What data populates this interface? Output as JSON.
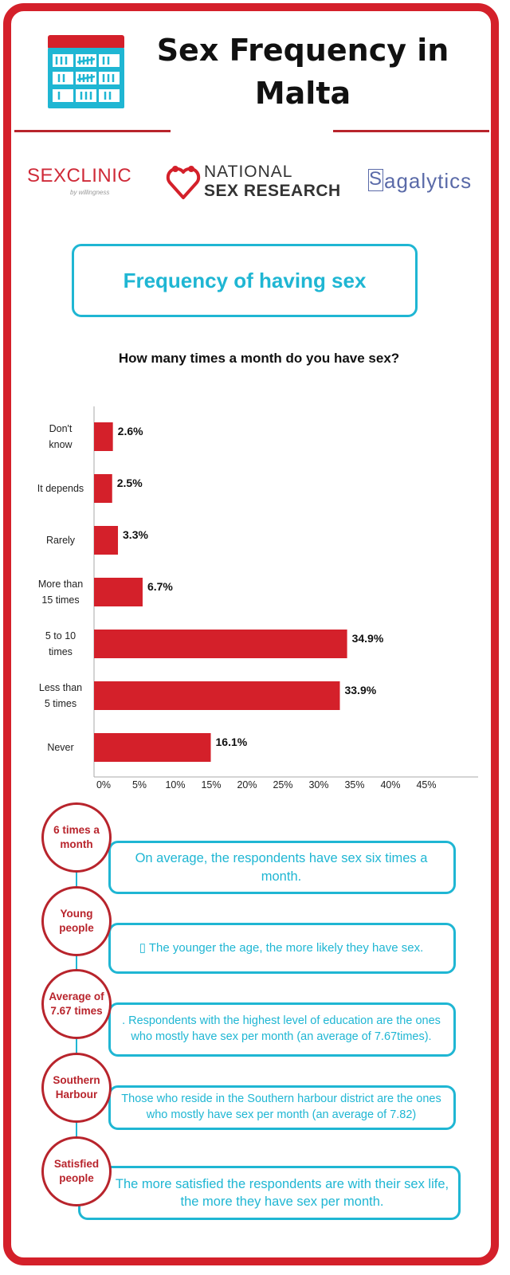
{
  "header": {
    "title": "Sex Frequency in Malta",
    "calendar_icon": "calendar-tally-icon"
  },
  "logos": {
    "sexclinic": "SEXCLINIC",
    "sexclinic_by": "by willingness",
    "nsr_line1": "NATIONAL",
    "nsr_line2": "SEX RESEARCH",
    "sagalytics_initial": "S",
    "sagalytics_rest": "agalytics"
  },
  "section": {
    "title": "Frequency of having sex"
  },
  "colors": {
    "bar": "#d4202a",
    "accent": "#1fb6d3",
    "frame": "#d4202a",
    "circle": "#b8242c"
  },
  "chart_data": {
    "type": "bar",
    "orientation": "horizontal",
    "title": "How many times a month do you have sex?",
    "categories": [
      [
        "Don't",
        "know"
      ],
      [
        "It depends"
      ],
      [
        "Rarely"
      ],
      [
        "More than",
        "15 times"
      ],
      [
        "5 to 10",
        "times"
      ],
      [
        "Less than",
        "5 times"
      ],
      [
        "Never"
      ]
    ],
    "values": [
      2.6,
      2.5,
      3.3,
      6.7,
      34.9,
      33.9,
      16.1
    ],
    "value_labels": [
      "2.6%",
      "2.5%",
      "3.3%",
      "6.7%",
      "34.9%",
      "33.9%",
      "16.1%"
    ],
    "xticks": [
      "0%",
      "5%",
      "10%",
      "15%",
      "20%",
      "25%",
      "30%",
      "35%",
      "40%",
      "45%"
    ],
    "xlim": [
      0,
      45
    ],
    "grid": false
  },
  "facts": [
    {
      "circle": "6 times a month",
      "text": "On average, the respondents have sex six times a month."
    },
    {
      "circle": "Young people",
      "text": "▯ The younger the age, the more likely they have sex."
    },
    {
      "circle": "Average of 7.67 times",
      "text": ". Respondents with the highest level of education are the ones who mostly have sex per month (an average of 7.67times)."
    },
    {
      "circle": "Southern Harbour",
      "text": "Those who reside in the Southern harbour district are the ones who mostly have sex per month (an average of 7.82)"
    },
    {
      "circle": "Satisfied people",
      "text": "The more satisfied the respondents are with their sex life, the more they have sex per month."
    }
  ]
}
